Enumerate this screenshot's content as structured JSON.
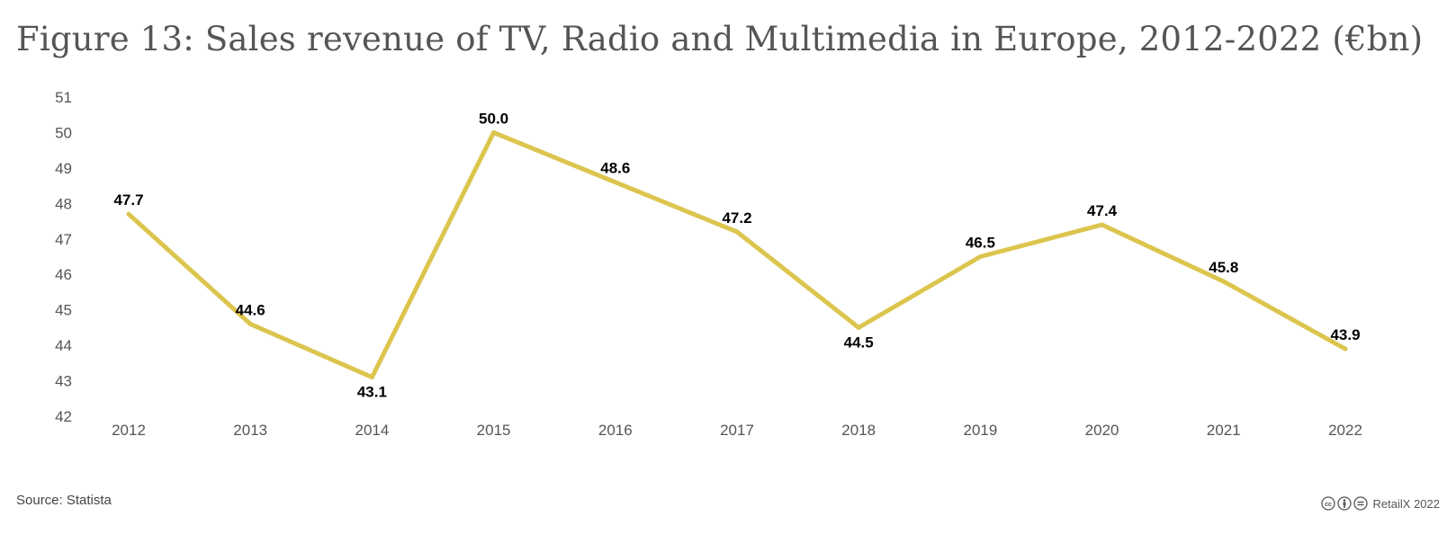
{
  "title": "Figure 13: Sales revenue of TV, Radio and Multimedia in Europe, 2012-2022  (€bn)",
  "source": "Source: Statista",
  "credit": "RetailX 2022",
  "icons": [
    "creative-commons-icon",
    "attribution-icon",
    "no-derivatives-icon"
  ],
  "colors": {
    "line": "#dcc54e",
    "tick_text": "#555555",
    "data_label": "#000000"
  },
  "chart_data": {
    "type": "line",
    "title": "Figure 13: Sales revenue of TV, Radio and Multimedia in Europe, 2012-2022  (€bn)",
    "xlabel": "",
    "ylabel": "",
    "categories": [
      "2012",
      "2013",
      "2014",
      "2015",
      "2016",
      "2017",
      "2018",
      "2019",
      "2020",
      "2021",
      "2022"
    ],
    "series": [
      {
        "values": [
          47.7,
          44.6,
          43.1,
          50.0,
          48.6,
          47.2,
          44.5,
          46.5,
          47.4,
          45.8,
          43.9
        ],
        "labels": [
          "47.7",
          "44.6",
          "43.1",
          "50.0",
          "48.6",
          "47.2",
          "44.5",
          "46.5",
          "47.4",
          "45.8",
          "43.9"
        ]
      }
    ],
    "ylim": [
      42,
      51
    ],
    "yticks": [
      "42",
      "43",
      "44",
      "45",
      "46",
      "47",
      "48",
      "49",
      "50",
      "51"
    ],
    "grid": false,
    "legend": "none"
  }
}
